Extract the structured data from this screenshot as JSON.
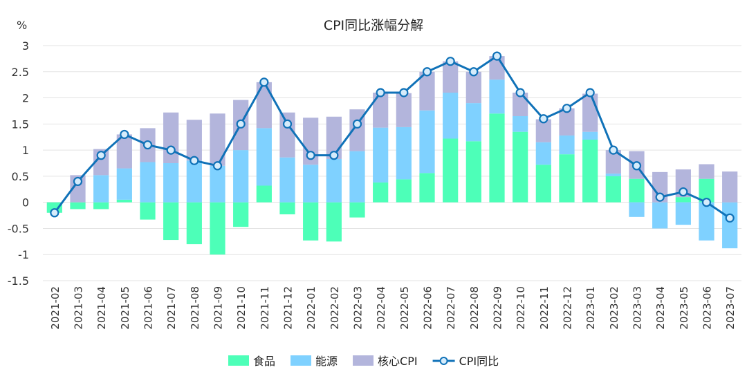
{
  "chart_data": {
    "type": "bar",
    "title": "CPI同比涨幅分解",
    "ylabel": "%",
    "ylim": [
      -1.5,
      3
    ],
    "yticks": [
      "3",
      "2.5",
      "2",
      "1.5",
      "1",
      "0.5",
      "0",
      "-0.5",
      "-1",
      "-1.5"
    ],
    "grid": true,
    "legend_position": "bottom",
    "categories": [
      "2021-02",
      "2021-03",
      "2021-04",
      "2021-05",
      "2021-06",
      "2021-07",
      "2021-08",
      "2021-09",
      "2021-10",
      "2021-11",
      "2021-12",
      "2022-01",
      "2022-02",
      "2022-03",
      "2022-04",
      "2022-05",
      "2022-06",
      "2022-07",
      "2022-08",
      "2022-09",
      "2022-10",
      "2022-11",
      "2022-12",
      "2023-01",
      "2023-02",
      "2023-03",
      "2023-04",
      "2023-05",
      "2023-06",
      "2023-07"
    ],
    "stacked": true,
    "series": [
      {
        "name": "食品",
        "type": "bar",
        "color": "#4dffb8",
        "values": [
          -0.2,
          -0.13,
          -0.13,
          0.05,
          -0.33,
          -0.72,
          -0.8,
          -1.0,
          -0.47,
          0.32,
          -0.23,
          -0.73,
          -0.75,
          -0.29,
          0.38,
          0.44,
          0.56,
          1.22,
          1.17,
          1.7,
          1.35,
          0.72,
          0.92,
          1.2,
          0.5,
          0.45,
          0.0,
          0.1,
          0.45,
          0.0
        ]
      },
      {
        "name": "能源",
        "type": "bar",
        "color": "#7fd1ff",
        "values": [
          0.0,
          0.0,
          0.52,
          0.6,
          0.77,
          0.75,
          0.8,
          0.7,
          1.0,
          1.1,
          0.86,
          0.72,
          0.83,
          0.98,
          1.05,
          1.0,
          1.2,
          0.88,
          0.73,
          0.65,
          0.3,
          0.43,
          0.36,
          0.15,
          0.05,
          -0.28,
          -0.5,
          -0.43,
          -0.73,
          -0.88
        ]
      },
      {
        "name": "核心CPI",
        "type": "bar",
        "color": "#b3b5dc",
        "values": [
          0.0,
          0.52,
          0.5,
          0.65,
          0.65,
          0.97,
          0.78,
          1.0,
          0.96,
          0.88,
          0.86,
          0.9,
          0.81,
          0.8,
          0.67,
          0.65,
          0.74,
          0.6,
          0.6,
          0.45,
          0.45,
          0.44,
          0.52,
          0.73,
          0.45,
          0.53,
          0.58,
          0.53,
          0.28,
          0.59
        ]
      },
      {
        "name": "CPI同比",
        "type": "line",
        "color": "#1072b8",
        "values": [
          -0.2,
          0.4,
          0.9,
          1.3,
          1.1,
          1.0,
          0.8,
          0.7,
          1.5,
          2.3,
          1.5,
          0.9,
          0.9,
          1.5,
          2.1,
          2.1,
          2.5,
          2.7,
          2.5,
          2.8,
          2.1,
          1.6,
          1.8,
          2.1,
          1.0,
          0.7,
          0.1,
          0.2,
          0.0,
          -0.3
        ]
      }
    ]
  }
}
